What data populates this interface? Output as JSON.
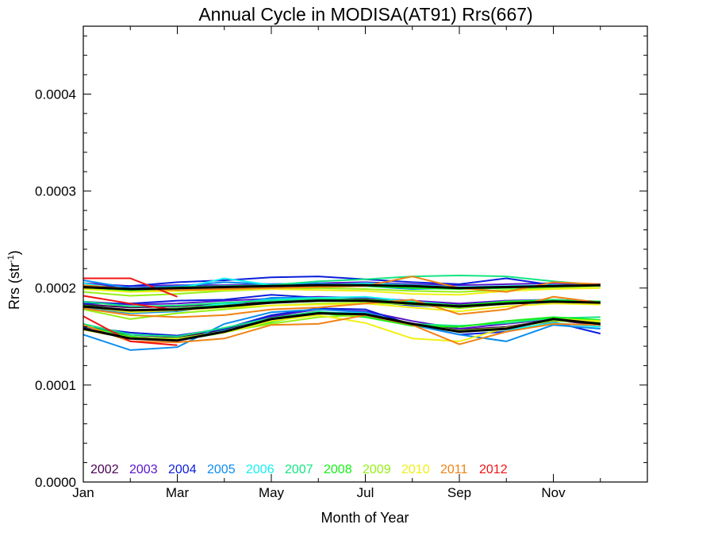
{
  "chart_data": {
    "type": "line",
    "title": "Annual Cycle in MODISA(AT91) Rrs(667)",
    "xlabel": "Month of Year",
    "ylabel": "Rrs (str",
    "ylabel_sup": "-1",
    "ylabel_close": ")",
    "x": [
      1,
      2,
      3,
      4,
      5,
      6,
      7,
      8,
      9,
      10,
      11,
      12
    ],
    "xlim": [
      1,
      13
    ],
    "ylim": [
      0,
      0.00047
    ],
    "x_ticks": [
      {
        "value": 1,
        "label": "Jan"
      },
      {
        "value": 3,
        "label": "Mar"
      },
      {
        "value": 5,
        "label": "May"
      },
      {
        "value": 7,
        "label": "Jul"
      },
      {
        "value": 9,
        "label": "Sep"
      },
      {
        "value": 11,
        "label": "Nov"
      }
    ],
    "y_ticks": [
      {
        "value": 0,
        "label": "0.0000"
      },
      {
        "value": 0.0001,
        "label": "0.0001"
      },
      {
        "value": 0.0002,
        "label": "0.0002"
      },
      {
        "value": 0.0003,
        "label": "0.0003"
      },
      {
        "value": 0.0004,
        "label": "0.0004"
      }
    ],
    "grid": false,
    "legend_position": "bottom-left",
    "series": [
      {
        "name": "2002",
        "color": "#4b0055",
        "lines": [
          [
            0.000183,
            0.00018,
            0.000181,
            0.000184,
            0.000186,
            0.000188,
            0.000189,
            0.000186,
            0.000183,
            0.000186,
            0.000187,
            0.000185
          ],
          [
            0.0002,
            0.000198,
            0.0002,
            0.000201,
            0.000202,
            0.000204,
            0.000203,
            0.000202,
            0.0002,
            0.000201,
            0.000203,
            0.000204
          ],
          [
            0.00016,
            0.000152,
            0.000149,
            0.000157,
            0.00017,
            0.000175,
            0.000173,
            0.000163,
            0.000157,
            0.00016,
            0.000167,
            0.000162
          ]
        ]
      },
      {
        "name": "2003",
        "color": "#5a14c8",
        "lines": [
          [
            0.000186,
            0.000183,
            0.000184,
            0.000187,
            0.000189,
            0.000191,
            0.00019,
            0.000187,
            0.000184,
            0.000187,
            0.000188,
            0.000186
          ],
          [
            0.000205,
            0.000202,
            0.000203,
            0.000203,
            0.000204,
            0.000205,
            0.000206,
            0.000204,
            0.000203,
            0.000204,
            0.000205,
            0.000204
          ],
          [
            0.000157,
            0.00015,
            0.000147,
            0.000155,
            0.000171,
            0.000178,
            0.000176,
            0.000166,
            0.000158,
            0.000163,
            0.000168,
            0.000163
          ]
        ]
      },
      {
        "name": "2004",
        "color": "#0a1edc",
        "lines": [
          [
            0.000184,
            0.000184,
            0.000187,
            0.000188,
            0.000193,
            0.00019,
            0.000186,
            0.000182,
            0.00018,
            0.000185,
            0.000187,
            0.000185
          ],
          [
            0.000202,
            0.000202,
            0.000206,
            0.000208,
            0.000211,
            0.000212,
            0.000209,
            0.000206,
            0.000204,
            0.00021,
            0.000203,
            0.000202
          ],
          [
            0.00016,
            0.000154,
            0.000151,
            0.000158,
            0.000172,
            0.000179,
            0.000178,
            0.000162,
            0.000152,
            0.000155,
            0.000165,
            0.000153
          ]
        ]
      },
      {
        "name": "2005",
        "color": "#0a8cf0",
        "lines": [
          [
            0.00018,
            0.000174,
            0.000176,
            0.000182,
            0.00019,
            0.00019,
            0.000186,
            0.000183,
            0.00018,
            0.000184,
            0.000185,
            0.000184
          ],
          [
            0.000208,
            0.0002,
            0.000202,
            0.000206,
            0.000204,
            0.000205,
            0.000202,
            0.000199,
            0.0002,
            0.000201,
            0.0002,
            0.000203
          ],
          [
            0.000152,
            0.000136,
            0.000139,
            0.000163,
            0.000175,
            0.000178,
            0.000175,
            0.000162,
            0.000152,
            0.000145,
            0.000162,
            0.000158
          ]
        ]
      },
      {
        "name": "2006",
        "color": "#14f0f0",
        "lines": [
          [
            0.000182,
            0.000176,
            0.000178,
            0.000184,
            0.000188,
            0.00019,
            0.000191,
            0.000186,
            0.000182,
            0.000186,
            0.000187,
            0.000186
          ],
          [
            0.000205,
            0.000197,
            0.000199,
            0.00021,
            0.000203,
            0.000203,
            0.000205,
            0.000203,
            0.000201,
            0.000202,
            0.000203,
            0.000203
          ],
          [
            0.000158,
            0.000148,
            0.000146,
            0.000156,
            0.000168,
            0.000175,
            0.000174,
            0.000162,
            0.000155,
            0.000157,
            0.000164,
            0.00016
          ]
        ]
      },
      {
        "name": "2007",
        "color": "#14e682",
        "lines": [
          [
            0.000186,
            0.000181,
            0.000182,
            0.000185,
            0.000187,
            0.000189,
            0.000188,
            0.000185,
            0.000181,
            0.000186,
            0.000188,
            0.000186
          ],
          [
            0.000201,
            0.000199,
            0.000201,
            0.000202,
            0.000203,
            0.000207,
            0.000209,
            0.000212,
            0.000213,
            0.000212,
            0.000207,
            0.000203
          ],
          [
            0.000163,
            0.000152,
            0.00015,
            0.000159,
            0.000169,
            0.000176,
            0.000171,
            0.000163,
            0.000161,
            0.000164,
            0.000169,
            0.00017
          ]
        ]
      },
      {
        "name": "2008",
        "color": "#14f014",
        "lines": [
          [
            0.000182,
            0.000177,
            0.000179,
            0.000182,
            0.000185,
            0.000187,
            0.000188,
            0.000185,
            0.000182,
            0.000186,
            0.000187,
            0.000186
          ],
          [
            0.000199,
            0.000197,
            0.000197,
            0.000198,
            0.000199,
            0.000201,
            0.000202,
            0.0002,
            0.000199,
            0.0002,
            0.000201,
            0.000202
          ],
          [
            0.000161,
            0.00015,
            0.000146,
            0.000154,
            0.000165,
            0.000174,
            0.00017,
            0.000161,
            0.00016,
            0.000166,
            0.00017,
            0.000167
          ]
        ]
      },
      {
        "name": "2009",
        "color": "#96f014",
        "lines": [
          [
            0.000178,
            0.000168,
            0.000174,
            0.000178,
            0.000182,
            0.000184,
            0.000185,
            0.000183,
            0.000179,
            0.000184,
            0.000186,
            0.000184
          ],
          [
            0.000196,
            0.000192,
            0.000194,
            0.000197,
            0.000199,
            0.0002,
            0.000199,
            0.000197,
            0.000196,
            0.000198,
            0.0002,
            0.000202
          ],
          [
            0.000158,
            0.000149,
            0.000148,
            0.000155,
            0.000163,
            0.00017,
            0.000172,
            0.000163,
            0.000156,
            0.000159,
            0.000166,
            0.000165
          ]
        ]
      },
      {
        "name": "2010",
        "color": "#f0f014",
        "lines": [
          [
            0.000181,
            0.000175,
            0.000177,
            0.00018,
            0.000182,
            0.000183,
            0.000184,
            0.00018,
            0.000176,
            0.000181,
            0.000184,
            0.000183
          ],
          [
            0.000199,
            0.000196,
            0.000197,
            0.000198,
            0.000199,
            0.000198,
            0.000197,
            0.000194,
            0.000193,
            0.000197,
            0.000199,
            0.0002
          ],
          [
            0.000157,
            0.000148,
            0.000147,
            0.000154,
            0.000166,
            0.000172,
            0.000164,
            0.000148,
            0.000145,
            0.000159,
            0.000168,
            0.000166
          ]
        ]
      },
      {
        "name": "2011",
        "color": "#f08214",
        "lines": [
          [
            0.000179,
            0.000172,
            0.00017,
            0.000172,
            0.000178,
            0.00018,
            0.000184,
            0.000188,
            0.000173,
            0.000178,
            0.000191,
            0.000185
          ],
          [
            0.000203,
            0.000199,
            0.000198,
            0.000199,
            0.0002,
            0.000201,
            0.000202,
            0.000212,
            0.0002,
            0.000196,
            0.000206,
            0.000204
          ],
          [
            0.000162,
            0.000145,
            0.000144,
            0.000148,
            0.000162,
            0.000163,
            0.000172,
            0.000162,
            0.000142,
            0.000155,
            0.000163,
            0.000162
          ]
        ]
      },
      {
        "name": "2012",
        "color": "#f01414",
        "lines": [
          [
            0.000192,
            0.000184,
            0.000177
          ],
          [
            0.00021,
            0.00021,
            0.000191
          ],
          [
            0.000171,
            0.000145,
            0.000141
          ]
        ]
      }
    ],
    "climatology": {
      "color": "#000000",
      "lines": [
        [
          0.000181,
          0.000177,
          0.000178,
          0.000181,
          0.000185,
          0.000187,
          0.000187,
          0.000184,
          0.000181,
          0.000184,
          0.000186,
          0.000185
        ],
        [
          0.000201,
          0.000199,
          0.0002,
          0.000201,
          0.000202,
          0.000203,
          0.000203,
          0.000202,
          0.0002,
          0.000201,
          0.000202,
          0.000203
        ],
        [
          0.000158,
          0.000148,
          0.000146,
          0.000155,
          0.000168,
          0.000174,
          0.000173,
          0.000163,
          0.000155,
          0.000158,
          0.000168,
          0.000163
        ]
      ]
    }
  }
}
